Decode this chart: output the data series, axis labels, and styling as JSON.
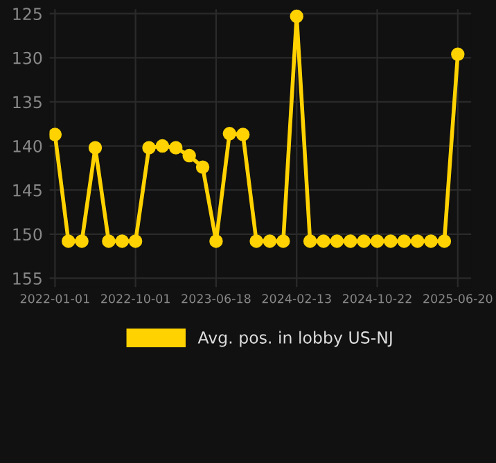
{
  "chart_data": {
    "type": "line",
    "categories": [
      "2022-01-01",
      null,
      null,
      null,
      null,
      null,
      "2022-10-01",
      null,
      null,
      null,
      null,
      null,
      "2023-06-18",
      null,
      null,
      null,
      null,
      null,
      "2024-02-13",
      null,
      null,
      null,
      null,
      null,
      "2024-10-22",
      null,
      null,
      null,
      null,
      null,
      "2025-06-20"
    ],
    "series": [
      {
        "name": "Avg. pos. in lobby US-NJ",
        "color": "#ffd200",
        "values": [
          138.7,
          150.8,
          150.8,
          140.2,
          150.8,
          150.8,
          150.8,
          140.2,
          140.0,
          140.2,
          141.1,
          142.4,
          150.8,
          138.6,
          138.7,
          150.8,
          150.8,
          150.8,
          125.3,
          150.8,
          150.8,
          150.8,
          150.8,
          150.8,
          150.8,
          150.8,
          150.8,
          150.8,
          150.8,
          150.8,
          129.6
        ]
      }
    ],
    "ylim": [
      156,
      124.5
    ],
    "yticks": [
      125,
      130,
      135,
      140,
      145,
      150,
      155
    ],
    "grid": true,
    "legend": "bottom",
    "marker": "circle",
    "line_style": "solid"
  }
}
